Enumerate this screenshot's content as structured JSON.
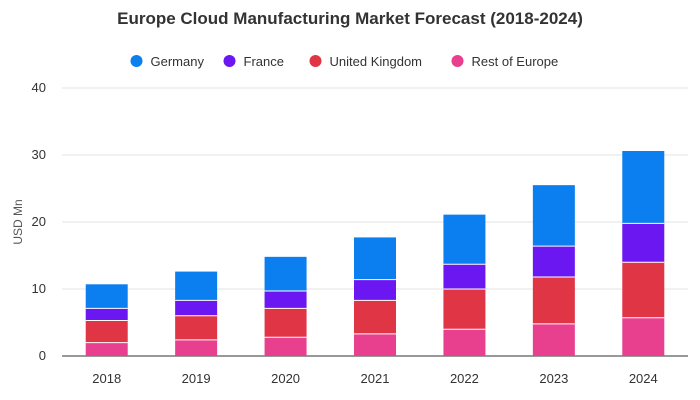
{
  "chart_data": {
    "type": "bar",
    "stacked": true,
    "title": "Europe Cloud Manufacturing Market Forecast (2018-2024)",
    "ylabel": "USD Mn",
    "xlabel": "",
    "categories": [
      "2018",
      "2019",
      "2020",
      "2021",
      "2022",
      "2023",
      "2024"
    ],
    "ylim": [
      0,
      40
    ],
    "yticks": [
      0,
      10,
      20,
      30,
      40
    ],
    "grid": true,
    "legend_position": "top",
    "series": [
      {
        "name": "Rest of Europe",
        "color": "#e8408e",
        "values": [
          2.0,
          2.4,
          2.8,
          3.3,
          4.0,
          4.8,
          5.7
        ]
      },
      {
        "name": "United Kingdom",
        "color": "#e03545",
        "values": [
          3.3,
          3.6,
          4.3,
          5.0,
          6.0,
          7.0,
          8.3
        ]
      },
      {
        "name": "France",
        "color": "#6a17f2",
        "values": [
          1.8,
          2.3,
          2.6,
          3.1,
          3.7,
          4.6,
          5.8
        ]
      },
      {
        "name": "Germany",
        "color": "#0b7ff0",
        "values": [
          3.6,
          4.3,
          5.1,
          6.3,
          7.4,
          9.1,
          10.8
        ]
      }
    ],
    "legend_order": [
      "Germany",
      "France",
      "United Kingdom",
      "Rest of Europe"
    ]
  }
}
